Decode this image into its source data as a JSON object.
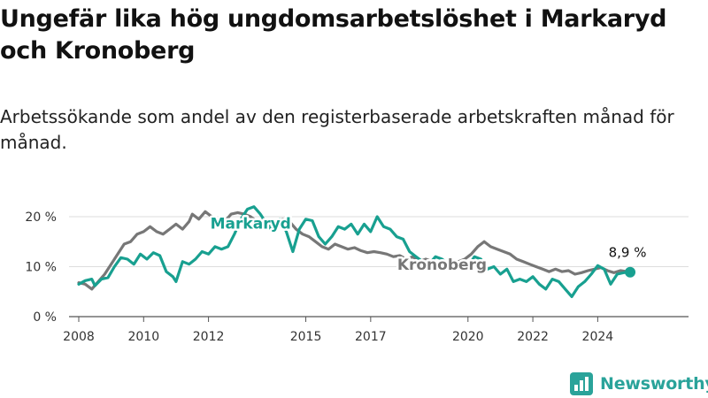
{
  "title": "Ungefär lika hög ungdomsarbetslöshet i Markaryd och Kronoberg",
  "subtitle": "Arbetssökande som andel av den registerbaserade arbetskraften månad för månad.",
  "brand": {
    "name": "Newsworthy",
    "icon": "newsworthy-logo-icon",
    "color": "#2aa39a"
  },
  "chart_data": {
    "type": "line",
    "x_unit": "year",
    "x_ticks": [
      "2008",
      "2010",
      "2012",
      "2015",
      "2017",
      "2020",
      "2022",
      "2024"
    ],
    "y_ticks": [
      "0 %",
      "10 %",
      "20 %"
    ],
    "ylim": [
      0,
      23
    ],
    "xlim": [
      2007.7,
      2026.8
    ],
    "grid": "horizontal",
    "last_value_label": "8,9 %",
    "series": [
      {
        "name": "Markaryd",
        "color": "#18a090",
        "points": [
          [
            2008.0,
            6.5
          ],
          [
            2008.2,
            7.2
          ],
          [
            2008.4,
            7.5
          ],
          [
            2008.5,
            6.2
          ],
          [
            2008.7,
            7.5
          ],
          [
            2008.9,
            7.8
          ],
          [
            2009.1,
            10.0
          ],
          [
            2009.3,
            11.8
          ],
          [
            2009.5,
            11.5
          ],
          [
            2009.7,
            10.5
          ],
          [
            2009.9,
            12.5
          ],
          [
            2010.1,
            11.5
          ],
          [
            2010.3,
            12.8
          ],
          [
            2010.5,
            12.2
          ],
          [
            2010.7,
            9.0
          ],
          [
            2010.9,
            8.0
          ],
          [
            2011.0,
            7.0
          ],
          [
            2011.2,
            11.0
          ],
          [
            2011.4,
            10.5
          ],
          [
            2011.6,
            11.5
          ],
          [
            2011.8,
            13.0
          ],
          [
            2012.0,
            12.5
          ],
          [
            2012.2,
            14.0
          ],
          [
            2012.4,
            13.5
          ],
          [
            2012.6,
            14.0
          ],
          [
            2012.8,
            16.5
          ],
          [
            2013.0,
            19.5
          ],
          [
            2013.2,
            21.5
          ],
          [
            2013.4,
            22.0
          ],
          [
            2013.6,
            20.5
          ],
          [
            2013.8,
            18.5
          ],
          [
            2014.0,
            17.0
          ],
          [
            2014.2,
            19.5
          ],
          [
            2014.4,
            17.0
          ],
          [
            2014.6,
            13.0
          ],
          [
            2014.8,
            17.5
          ],
          [
            2015.0,
            19.5
          ],
          [
            2015.2,
            19.2
          ],
          [
            2015.4,
            16.0
          ],
          [
            2015.6,
            14.5
          ],
          [
            2015.8,
            16.0
          ],
          [
            2016.0,
            18.0
          ],
          [
            2016.2,
            17.5
          ],
          [
            2016.4,
            18.5
          ],
          [
            2016.6,
            16.5
          ],
          [
            2016.8,
            18.5
          ],
          [
            2017.0,
            17.0
          ],
          [
            2017.2,
            20.0
          ],
          [
            2017.4,
            18.0
          ],
          [
            2017.6,
            17.5
          ],
          [
            2017.8,
            16.0
          ],
          [
            2018.0,
            15.5
          ],
          [
            2018.2,
            13.0
          ],
          [
            2018.4,
            12.0
          ],
          [
            2018.6,
            11.0
          ],
          [
            2018.8,
            10.5
          ],
          [
            2019.0,
            12.0
          ],
          [
            2019.2,
            11.5
          ],
          [
            2019.4,
            10.5
          ],
          [
            2019.6,
            10.0
          ],
          [
            2019.8,
            11.0
          ],
          [
            2020.0,
            10.0
          ],
          [
            2020.2,
            12.0
          ],
          [
            2020.4,
            11.5
          ],
          [
            2020.6,
            9.5
          ],
          [
            2020.8,
            10.0
          ],
          [
            2021.0,
            8.5
          ],
          [
            2021.2,
            9.5
          ],
          [
            2021.4,
            7.0
          ],
          [
            2021.6,
            7.5
          ],
          [
            2021.8,
            7.0
          ],
          [
            2022.0,
            8.0
          ],
          [
            2022.2,
            6.5
          ],
          [
            2022.4,
            5.5
          ],
          [
            2022.6,
            7.5
          ],
          [
            2022.8,
            7.0
          ],
          [
            2023.0,
            5.5
          ],
          [
            2023.2,
            4.0
          ],
          [
            2023.4,
            6.0
          ],
          [
            2023.6,
            7.0
          ],
          [
            2023.8,
            8.5
          ],
          [
            2024.0,
            10.2
          ],
          [
            2024.2,
            9.5
          ],
          [
            2024.4,
            6.5
          ],
          [
            2024.6,
            8.5
          ],
          [
            2024.8,
            8.8
          ],
          [
            2025.0,
            8.9
          ]
        ]
      },
      {
        "name": "Kronoberg",
        "color": "#777777",
        "points": [
          [
            2008.0,
            6.8
          ],
          [
            2008.2,
            6.5
          ],
          [
            2008.4,
            5.5
          ],
          [
            2008.6,
            7.0
          ],
          [
            2008.8,
            8.5
          ],
          [
            2009.0,
            10.5
          ],
          [
            2009.2,
            12.5
          ],
          [
            2009.4,
            14.5
          ],
          [
            2009.6,
            15.0
          ],
          [
            2009.8,
            16.5
          ],
          [
            2010.0,
            17.0
          ],
          [
            2010.2,
            18.0
          ],
          [
            2010.4,
            17.0
          ],
          [
            2010.6,
            16.5
          ],
          [
            2010.8,
            17.5
          ],
          [
            2011.0,
            18.5
          ],
          [
            2011.2,
            17.5
          ],
          [
            2011.4,
            19.0
          ],
          [
            2011.5,
            20.5
          ],
          [
            2011.7,
            19.5
          ],
          [
            2011.9,
            21.0
          ],
          [
            2012.1,
            20.0
          ],
          [
            2012.3,
            18.5
          ],
          [
            2012.5,
            19.0
          ],
          [
            2012.7,
            20.5
          ],
          [
            2012.9,
            20.8
          ],
          [
            2013.1,
            20.5
          ],
          [
            2013.3,
            20.0
          ],
          [
            2013.5,
            19.0
          ],
          [
            2013.7,
            19.5
          ],
          [
            2013.9,
            18.5
          ],
          [
            2014.1,
            19.0
          ],
          [
            2014.3,
            19.5
          ],
          [
            2014.5,
            19.0
          ],
          [
            2014.7,
            17.5
          ],
          [
            2014.9,
            16.5
          ],
          [
            2015.1,
            16.0
          ],
          [
            2015.3,
            15.0
          ],
          [
            2015.5,
            14.0
          ],
          [
            2015.7,
            13.5
          ],
          [
            2015.9,
            14.5
          ],
          [
            2016.1,
            14.0
          ],
          [
            2016.3,
            13.5
          ],
          [
            2016.5,
            13.8
          ],
          [
            2016.7,
            13.2
          ],
          [
            2016.9,
            12.8
          ],
          [
            2017.1,
            13.0
          ],
          [
            2017.3,
            12.8
          ],
          [
            2017.5,
            12.5
          ],
          [
            2017.7,
            12.0
          ],
          [
            2017.9,
            12.2
          ],
          [
            2018.1,
            11.5
          ],
          [
            2018.3,
            12.0
          ],
          [
            2018.5,
            11.0
          ],
          [
            2018.7,
            11.5
          ],
          [
            2018.9,
            11.0
          ],
          [
            2019.1,
            10.5
          ],
          [
            2019.3,
            11.0
          ],
          [
            2019.5,
            10.5
          ],
          [
            2019.7,
            11.0
          ],
          [
            2019.9,
            11.5
          ],
          [
            2020.1,
            12.5
          ],
          [
            2020.3,
            14.0
          ],
          [
            2020.5,
            15.0
          ],
          [
            2020.7,
            14.0
          ],
          [
            2020.9,
            13.5
          ],
          [
            2021.1,
            13.0
          ],
          [
            2021.3,
            12.5
          ],
          [
            2021.5,
            11.5
          ],
          [
            2021.7,
            11.0
          ],
          [
            2021.9,
            10.5
          ],
          [
            2022.1,
            10.0
          ],
          [
            2022.3,
            9.5
          ],
          [
            2022.5,
            9.0
          ],
          [
            2022.7,
            9.5
          ],
          [
            2022.9,
            9.0
          ],
          [
            2023.1,
            9.2
          ],
          [
            2023.3,
            8.5
          ],
          [
            2023.5,
            8.8
          ],
          [
            2023.7,
            9.2
          ],
          [
            2023.9,
            9.5
          ],
          [
            2024.1,
            9.8
          ],
          [
            2024.3,
            9.2
          ],
          [
            2024.5,
            8.8
          ],
          [
            2024.7,
            9.2
          ],
          [
            2024.9,
            9.0
          ],
          [
            2025.0,
            8.9
          ]
        ]
      }
    ]
  }
}
